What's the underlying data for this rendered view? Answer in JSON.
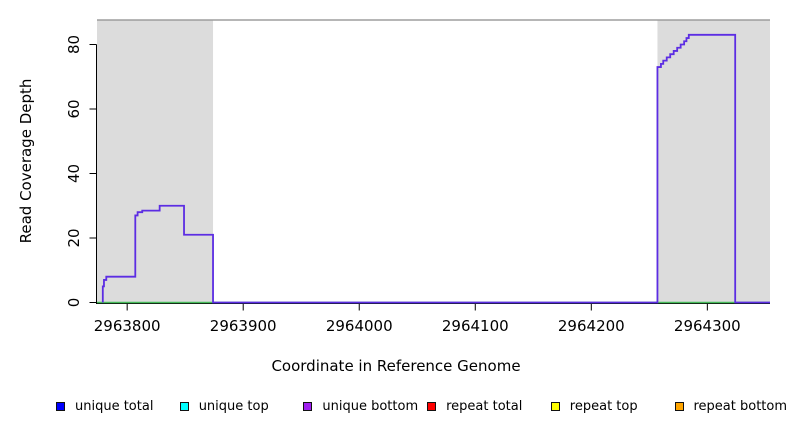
{
  "figure": {
    "background": "#ffffff",
    "x_axis_title": "Coordinate in Reference Genome",
    "y_axis_title": "Read Coverage Depth"
  },
  "chart_data": {
    "type": "line",
    "subtype": "step-coverage",
    "title": "",
    "xlabel": "Coordinate in Reference Genome",
    "ylabel": "Read Coverage Depth",
    "xlim": [
      2963774,
      2964354
    ],
    "ylim": [
      0,
      87.6
    ],
    "x_ticks": [
      2963800,
      2963900,
      2964000,
      2964100,
      2964200,
      2964300
    ],
    "y_ticks": [
      0,
      20,
      40,
      60,
      80
    ],
    "grid": false,
    "axis_color": "#000000",
    "box_color": "#8a8a8a",
    "highlight_regions": [
      {
        "start": 2963774,
        "end": 2963874,
        "color": "#dcdcdc"
      },
      {
        "start": 2964257,
        "end": 2964354,
        "color": "#dcdcdc"
      }
    ],
    "series": [
      {
        "name": "coverage-step-curve",
        "color": "#5c2de3",
        "style": "step",
        "points": [
          [
            2963779,
            5
          ],
          [
            2963780,
            7
          ],
          [
            2963782,
            8
          ],
          [
            2963807,
            27
          ],
          [
            2963809,
            28
          ],
          [
            2963813,
            28.5
          ],
          [
            2963828,
            30
          ],
          [
            2963849,
            21
          ],
          [
            2963874,
            0
          ],
          [
            2964257,
            73
          ],
          [
            2964260,
            74
          ],
          [
            2964262,
            75
          ],
          [
            2964265,
            76
          ],
          [
            2964268,
            77
          ],
          [
            2964271,
            78
          ],
          [
            2964274,
            79
          ],
          [
            2964277,
            80
          ],
          [
            2964280,
            81
          ],
          [
            2964282,
            82
          ],
          [
            2964284,
            83
          ],
          [
            2964324,
            0
          ],
          [
            2964354,
            0
          ]
        ]
      },
      {
        "name": "zero-baseline",
        "color": "#46bb5a",
        "style": "line",
        "points": [
          [
            2963774,
            0
          ],
          [
            2964354,
            0
          ]
        ]
      }
    ],
    "legend": {
      "position": "bottom",
      "items": [
        {
          "label": "unique total",
          "color": "#0000ff"
        },
        {
          "label": "unique top",
          "color": "#00ffff"
        },
        {
          "label": "unique bottom",
          "color": "#a020f0"
        },
        {
          "label": "repeat total",
          "color": "#ff0000"
        },
        {
          "label": "repeat top",
          "color": "#ffff00"
        },
        {
          "label": "repeat bottom",
          "color": "#ffa500"
        }
      ]
    }
  }
}
